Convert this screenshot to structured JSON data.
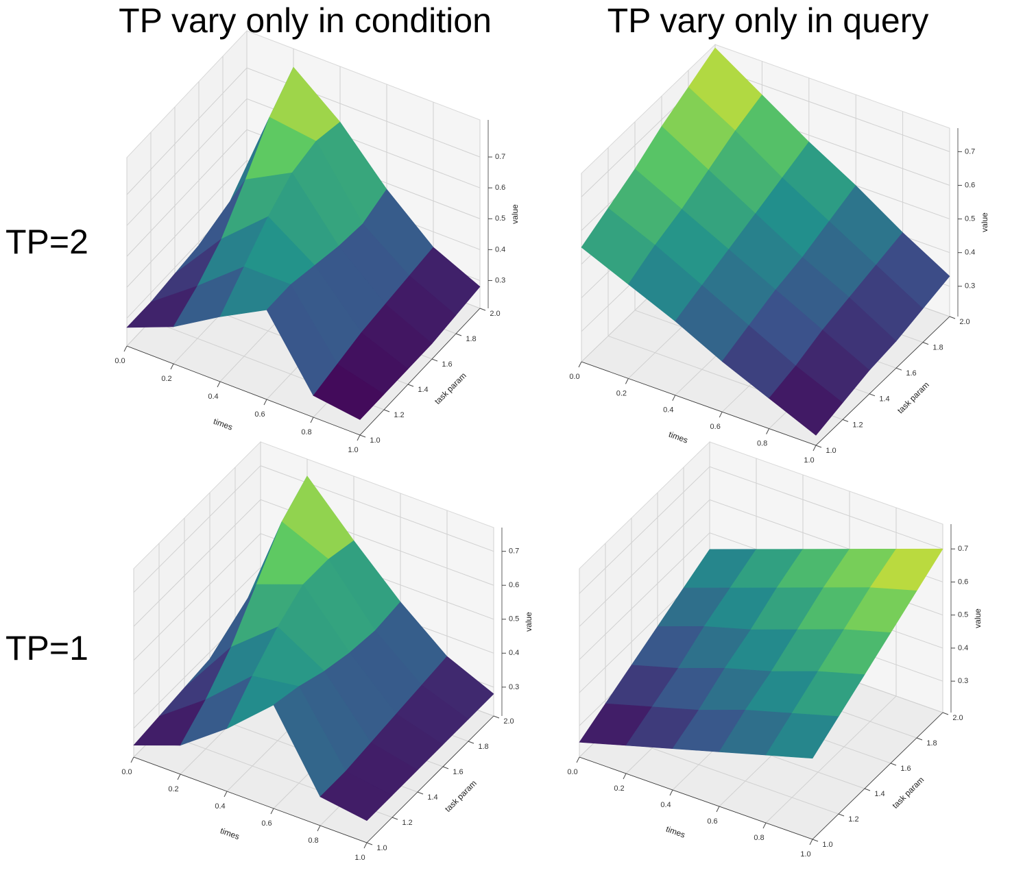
{
  "column_titles": [
    "TP vary only in condition",
    "TP vary only in query"
  ],
  "row_labels": [
    "TP=2",
    "TP=1"
  ],
  "chart_data": [
    {
      "type": "surface",
      "xlabel": "times",
      "ylabel": "task param",
      "zlabel": "value",
      "colormap": [
        "#440154",
        "#3b528b",
        "#21918c",
        "#5ec962",
        "#fde725"
      ],
      "xlim": [
        0,
        1
      ],
      "ylim": [
        1,
        2
      ],
      "zlim": [
        0.21,
        0.82
      ],
      "xticks": [
        {
          "value": 0,
          "label": "0.0"
        },
        0.2,
        0.4,
        0.6,
        0.8,
        {
          "value": 1,
          "label": "1.0"
        }
      ],
      "yticks": [
        {
          "value": 1,
          "label": "1.0"
        },
        1.2,
        1.4,
        1.6,
        1.8,
        {
          "value": 2,
          "label": "2.0"
        }
      ],
      "zticks": [
        0.3,
        0.4,
        0.5,
        0.6,
        0.7
      ],
      "x": [
        0,
        0.2,
        0.4,
        0.6,
        0.8,
        1
      ],
      "y": [
        1,
        1.2,
        1.4,
        1.6,
        1.8,
        2
      ],
      "z": [
        [
          0.27,
          0.33,
          0.42,
          0.5,
          0.28,
          0.26
        ],
        [
          0.27,
          0.38,
          0.5,
          0.5,
          0.3,
          0.26
        ],
        [
          0.28,
          0.45,
          0.58,
          0.48,
          0.32,
          0.26
        ],
        [
          0.29,
          0.56,
          0.64,
          0.46,
          0.33,
          0.26
        ],
        [
          0.3,
          0.68,
          0.66,
          0.45,
          0.34,
          0.27
        ],
        [
          0.32,
          0.76,
          0.64,
          0.48,
          0.35,
          0.28
        ]
      ]
    },
    {
      "type": "surface",
      "xlabel": "times",
      "ylabel": "task param",
      "zlabel": "value",
      "colormap": [
        "#440154",
        "#3b528b",
        "#21918c",
        "#5ec962",
        "#fde725"
      ],
      "xlim": [
        0,
        1
      ],
      "ylim": [
        1,
        2
      ],
      "zlim": [
        0.21,
        0.77
      ],
      "xticks": [
        {
          "value": 0,
          "label": "0.0"
        },
        0.2,
        0.4,
        0.6,
        0.8,
        {
          "value": 1,
          "label": "1.0"
        }
      ],
      "yticks": [
        {
          "value": 1,
          "label": "1.0"
        },
        1.2,
        1.4,
        1.6,
        1.8,
        {
          "value": 2,
          "label": "2.0"
        }
      ],
      "zticks": [
        0.3,
        0.4,
        0.5,
        0.6,
        0.7
      ],
      "x": [
        0,
        0.2,
        0.4,
        0.6,
        0.8,
        1
      ],
      "y": [
        1,
        1.2,
        1.4,
        1.6,
        1.8,
        2
      ],
      "z": [
        [
          0.55,
          0.49,
          0.43,
          0.36,
          0.3,
          0.24
        ],
        [
          0.59,
          0.53,
          0.46,
          0.39,
          0.32,
          0.26
        ],
        [
          0.63,
          0.56,
          0.49,
          0.42,
          0.35,
          0.28
        ],
        [
          0.68,
          0.6,
          0.52,
          0.44,
          0.37,
          0.29
        ],
        [
          0.72,
          0.64,
          0.55,
          0.47,
          0.39,
          0.31
        ],
        [
          0.76,
          0.67,
          0.58,
          0.5,
          0.41,
          0.33
        ]
      ]
    },
    {
      "type": "surface",
      "xlabel": "times",
      "ylabel": "task param",
      "zlabel": "value",
      "colormap": [
        "#440154",
        "#3b528b",
        "#21918c",
        "#5ec962",
        "#fde725"
      ],
      "xlim": [
        0,
        1
      ],
      "ylim": [
        1,
        2
      ],
      "zlim": [
        0.215,
        0.77
      ],
      "xticks": [
        {
          "value": 0,
          "label": "0.0"
        },
        0.2,
        0.4,
        0.6,
        0.8,
        {
          "value": 1,
          "label": "1.0"
        }
      ],
      "yticks": [
        {
          "value": 1,
          "label": "1.0"
        },
        1.2,
        1.4,
        1.6,
        1.8,
        {
          "value": 2,
          "label": "2.0"
        }
      ],
      "zticks": [
        0.3,
        0.4,
        0.5,
        0.6,
        0.7
      ],
      "x": [
        0,
        0.2,
        0.4,
        0.6,
        0.8,
        1
      ],
      "y": [
        1,
        1.2,
        1.4,
        1.6,
        1.8,
        2
      ],
      "z": [
        [
          0.25,
          0.3,
          0.4,
          0.52,
          0.3,
          0.28
        ],
        [
          0.26,
          0.36,
          0.48,
          0.5,
          0.3,
          0.28
        ],
        [
          0.27,
          0.44,
          0.55,
          0.47,
          0.31,
          0.28
        ],
        [
          0.28,
          0.55,
          0.6,
          0.45,
          0.32,
          0.28
        ],
        [
          0.3,
          0.66,
          0.6,
          0.44,
          0.33,
          0.28
        ],
        [
          0.32,
          0.72,
          0.58,
          0.45,
          0.34,
          0.28
        ]
      ]
    },
    {
      "type": "surface",
      "xlabel": "times",
      "ylabel": "task param",
      "zlabel": "value",
      "colormap": [
        "#440154",
        "#3b528b",
        "#21918c",
        "#5ec962",
        "#fde725"
      ],
      "xlim": [
        0,
        1
      ],
      "ylim": [
        1,
        2
      ],
      "zlim": [
        0.205,
        0.775
      ],
      "xticks": [
        {
          "value": 0,
          "label": "0.0"
        },
        0.2,
        0.4,
        0.6,
        0.8,
        {
          "value": 1,
          "label": "1.0"
        }
      ],
      "yticks": [
        {
          "value": 1,
          "label": "1.0"
        },
        1.2,
        1.4,
        1.6,
        1.8,
        {
          "value": 2,
          "label": "2.0"
        }
      ],
      "zticks": [
        0.3,
        0.4,
        0.5,
        0.6,
        0.7
      ],
      "x": [
        0,
        0.2,
        0.4,
        0.6,
        0.8,
        1
      ],
      "y": [
        1,
        1.2,
        1.4,
        1.6,
        1.8,
        2
      ],
      "z": [
        [
          0.25,
          0.29,
          0.33,
          0.37,
          0.41,
          0.45
        ],
        [
          0.29,
          0.33,
          0.37,
          0.42,
          0.46,
          0.5
        ],
        [
          0.33,
          0.37,
          0.42,
          0.46,
          0.51,
          0.55
        ],
        [
          0.37,
          0.42,
          0.46,
          0.51,
          0.56,
          0.6
        ],
        [
          0.41,
          0.46,
          0.51,
          0.56,
          0.61,
          0.65
        ],
        [
          0.45,
          0.5,
          0.55,
          0.6,
          0.65,
          0.7
        ]
      ]
    }
  ]
}
